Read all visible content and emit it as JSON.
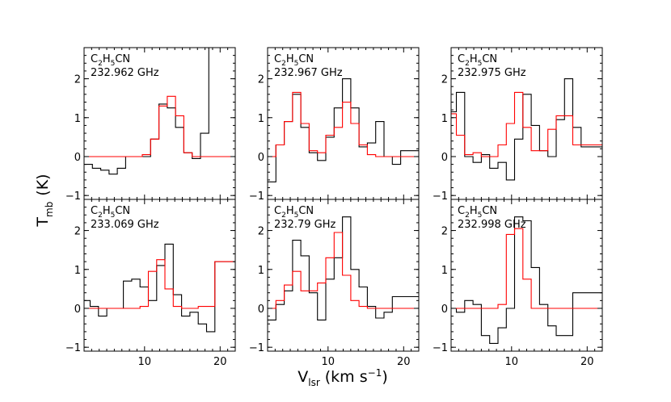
{
  "chart_data": {
    "type": "line",
    "layout": "2x3 grid",
    "xlabel_main": "V",
    "xlabel_sub": "lsr",
    "xlabel_unit": "(km s",
    "xlabel_exp": "−1",
    "xlabel_close": ")",
    "ylabel_main": "T",
    "ylabel_sub": "mb",
    "ylabel_unit": "(K)",
    "xlim": [
      2,
      22
    ],
    "ylim": [
      -1.1,
      2.8
    ],
    "xticks": [
      10,
      20
    ],
    "yticks": [
      -1,
      0,
      1,
      2
    ],
    "series_colors": {
      "observed": "#000000",
      "model": "#ff0000"
    },
    "panels": [
      {
        "molecule": "C2H5CN",
        "mol_base": "C",
        "mol_sub1": "2",
        "mol_mid": "H",
        "mol_sub2": "5",
        "mol_end": "CN",
        "frequency": "232.962 GHz",
        "show_xticklabels": false,
        "observed": {
          "x": [
            2,
            3.1,
            4.2,
            5.3,
            6.4,
            7.5,
            8.6,
            9.7,
            10.8,
            11.9,
            13.0,
            14.1,
            15.2,
            16.3,
            17.4,
            18.5,
            19.6,
            22
          ],
          "y": [
            -0.2,
            -0.3,
            -0.35,
            -0.45,
            -0.3,
            0.0,
            0.0,
            0.0,
            0.45,
            1.35,
            1.25,
            0.75,
            0.1,
            -0.05,
            0.6,
            2.8,
            2.8,
            2.8
          ]
        },
        "model": {
          "x": [
            2,
            3.1,
            4.2,
            5.3,
            6.4,
            7.5,
            8.6,
            9.7,
            10.8,
            11.9,
            13.0,
            14.1,
            15.2,
            16.3,
            17.4,
            18.5,
            19.6,
            22
          ],
          "y": [
            0,
            0,
            0,
            0,
            0,
            0,
            0,
            0.05,
            0.45,
            1.3,
            1.55,
            1.05,
            0.1,
            0.0,
            0,
            0,
            0,
            0
          ]
        }
      },
      {
        "molecule": "C2H5CN",
        "mol_base": "C",
        "mol_sub1": "2",
        "mol_mid": "H",
        "mol_sub2": "5",
        "mol_end": "CN",
        "frequency": "232.967 GHz",
        "show_xticklabels": false,
        "observed": {
          "x": [
            2,
            3.1,
            4.2,
            5.3,
            6.4,
            7.5,
            8.6,
            9.7,
            10.8,
            11.9,
            13.0,
            14.1,
            15.2,
            16.3,
            17.4,
            18.5,
            19.6,
            22
          ],
          "y": [
            -0.65,
            0.3,
            0.9,
            1.6,
            0.75,
            0.1,
            -0.1,
            0.5,
            1.25,
            2.0,
            1.25,
            0.25,
            0.35,
            0.9,
            0.0,
            -0.2,
            0.15,
            0.15
          ]
        },
        "model": {
          "x": [
            2,
            3.1,
            4.2,
            5.3,
            6.4,
            7.5,
            8.6,
            9.7,
            10.8,
            11.9,
            13.0,
            14.1,
            15.2,
            16.3,
            17.4,
            18.5,
            19.6,
            22
          ],
          "y": [
            0,
            0.3,
            0.9,
            1.65,
            0.85,
            0.15,
            0.1,
            0.55,
            0.75,
            1.4,
            0.85,
            0.3,
            0.05,
            0,
            0,
            0,
            0,
            0
          ]
        }
      },
      {
        "molecule": "C2H5CN",
        "mol_base": "C",
        "mol_sub1": "2",
        "mol_mid": "H",
        "mol_sub2": "5",
        "mol_end": "CN",
        "frequency": "232.975 GHz",
        "show_xticklabels": false,
        "observed": {
          "x": [
            2,
            2.7,
            3.8,
            4.9,
            6.0,
            7.1,
            8.2,
            9.3,
            10.4,
            11.5,
            12.6,
            13.7,
            14.8,
            15.9,
            17.0,
            18.1,
            19.2,
            20.3,
            21.4,
            22
          ],
          "y": [
            1.15,
            1.65,
            0.0,
            -0.15,
            0.05,
            -0.3,
            -0.15,
            -0.6,
            0.45,
            1.6,
            0.8,
            0.15,
            0.0,
            0.95,
            2.0,
            0.75,
            0.25,
            0.25,
            0.25,
            0.25
          ]
        },
        "model": {
          "x": [
            2,
            2.7,
            3.8,
            4.9,
            6.0,
            7.1,
            8.2,
            9.3,
            10.4,
            11.5,
            12.6,
            13.7,
            14.8,
            15.9,
            17.0,
            18.1,
            19.2,
            20.3,
            21.4,
            22
          ],
          "y": [
            1.1,
            0.55,
            0.05,
            0.1,
            0.0,
            0.0,
            0.3,
            0.85,
            1.65,
            0.75,
            0.15,
            0.15,
            0.7,
            1.05,
            1.05,
            0.3,
            0.3,
            0.3,
            0.3,
            0.3
          ]
        }
      },
      {
        "molecule": "C2H5CN",
        "mol_base": "C",
        "mol_sub1": "2",
        "mol_mid": "H",
        "mol_sub2": "5",
        "mol_end": "CN",
        "frequency": "233.069 GHz",
        "show_xticklabels": true,
        "observed": {
          "x": [
            2,
            2.8,
            3.9,
            5.0,
            6.1,
            7.2,
            8.3,
            9.4,
            10.5,
            11.6,
            12.7,
            13.8,
            14.9,
            16.0,
            17.1,
            18.2,
            19.3,
            20.4,
            21.5,
            22
          ],
          "y": [
            0.2,
            0.05,
            -0.2,
            0.0,
            0.0,
            0.7,
            0.75,
            0.55,
            0.2,
            1.1,
            1.65,
            0.35,
            -0.2,
            -0.1,
            -0.4,
            -0.6,
            1.2,
            1.2,
            1.2,
            1.2
          ]
        },
        "model": {
          "x": [
            2,
            2.8,
            3.9,
            5.0,
            6.1,
            7.2,
            8.3,
            9.4,
            10.5,
            11.6,
            12.7,
            13.8,
            14.9,
            16.0,
            17.1,
            18.2,
            19.3,
            20.4,
            21.5,
            22
          ],
          "y": [
            0,
            0,
            0,
            0,
            0,
            0,
            0,
            0.05,
            0.95,
            1.25,
            0.5,
            0.05,
            0.0,
            0.0,
            0.05,
            0.05,
            1.2,
            1.2,
            1.2,
            1.2
          ]
        }
      },
      {
        "molecule": "C2H5CN",
        "mol_base": "C",
        "mol_sub1": "2",
        "mol_mid": "H",
        "mol_sub2": "5",
        "mol_end": "CN",
        "frequency": "232.79 GHz",
        "show_xticklabels": true,
        "observed": {
          "x": [
            2,
            3.1,
            4.2,
            5.3,
            6.4,
            7.5,
            8.6,
            9.7,
            10.8,
            11.9,
            13.0,
            14.1,
            15.2,
            16.3,
            17.4,
            18.5,
            19.6,
            22
          ],
          "y": [
            -0.3,
            0.1,
            0.45,
            1.75,
            1.35,
            0.4,
            -0.3,
            0.75,
            1.3,
            2.35,
            1.0,
            0.55,
            0.05,
            -0.25,
            -0.1,
            0.3,
            0.3,
            0.3
          ]
        },
        "model": {
          "x": [
            2,
            3.1,
            4.2,
            5.3,
            6.4,
            7.5,
            8.6,
            9.7,
            10.8,
            11.9,
            13.0,
            14.1,
            15.2,
            16.3,
            17.4,
            18.5,
            19.6,
            22
          ],
          "y": [
            0,
            0.2,
            0.6,
            0.95,
            0.45,
            0.45,
            0.65,
            1.3,
            1.95,
            0.85,
            0.2,
            0.05,
            0,
            0,
            0,
            0,
            0,
            0
          ]
        }
      },
      {
        "molecule": "C2H5CN",
        "mol_base": "C",
        "mol_sub1": "2",
        "mol_mid": "H",
        "mol_sub2": "5",
        "mol_end": "CN",
        "frequency": "232.998 GHz",
        "show_xticklabels": true,
        "observed": {
          "x": [
            2,
            2.7,
            3.8,
            4.9,
            6.0,
            7.1,
            8.2,
            9.3,
            10.4,
            11.5,
            12.6,
            13.7,
            14.8,
            15.9,
            17.0,
            18.1,
            19.2,
            20.3,
            21.4,
            22
          ],
          "y": [
            0.0,
            -0.1,
            0.2,
            0.1,
            -0.7,
            -0.9,
            -0.5,
            0.0,
            2.35,
            2.25,
            1.05,
            0.1,
            -0.45,
            -0.7,
            -0.7,
            0.4,
            0.4,
            0.4,
            0.4,
            0.4
          ]
        },
        "model": {
          "x": [
            2,
            2.7,
            3.8,
            4.9,
            6.0,
            7.1,
            8.2,
            9.3,
            10.4,
            11.5,
            12.6,
            13.7,
            14.8,
            15.9,
            17.0,
            18.1,
            19.2,
            20.3,
            21.4,
            22
          ],
          "y": [
            0,
            0,
            0,
            0,
            0,
            0,
            0.1,
            1.9,
            2.05,
            0.75,
            0.0,
            0.0,
            0.0,
            0,
            0,
            0,
            0,
            0,
            0,
            0
          ]
        }
      }
    ]
  }
}
